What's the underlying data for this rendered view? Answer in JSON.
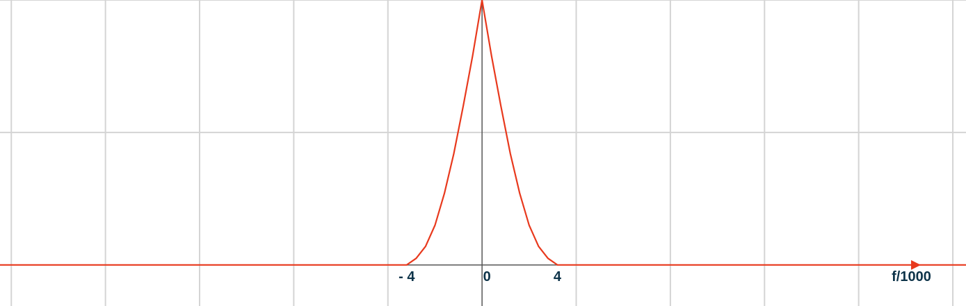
{
  "chart_data": {
    "type": "line",
    "title": "",
    "xlabel": "f/1000",
    "ylabel": "",
    "xlim": [
      -25.6,
      25.7
    ],
    "ylim": [
      -0.31,
      2.0
    ],
    "grid": true,
    "x_tick_labels": [
      {
        "value": -4,
        "text": "- 4"
      },
      {
        "value": 0,
        "text": "0"
      },
      {
        "value": 4,
        "text": "4"
      }
    ],
    "series": [
      {
        "values_description_free": true,
        "x": [
          -25.6,
          -4,
          -3.5,
          -3,
          -2.5,
          -2,
          -1.5,
          -1,
          -0.5,
          0,
          0.5,
          1,
          1.5,
          2,
          2.5,
          3,
          3.5,
          4,
          25.7
        ],
        "y": [
          0,
          0,
          0.05,
          0.14,
          0.3,
          0.54,
          0.84,
          1.2,
          1.58,
          2.0,
          1.58,
          1.2,
          0.84,
          0.54,
          0.3,
          0.14,
          0.05,
          0,
          0
        ]
      }
    ],
    "colors": {
      "curve": "#e8391d",
      "axis": "#555555",
      "grid": "#d4d4d4",
      "tick_text": "#0d3349"
    }
  }
}
